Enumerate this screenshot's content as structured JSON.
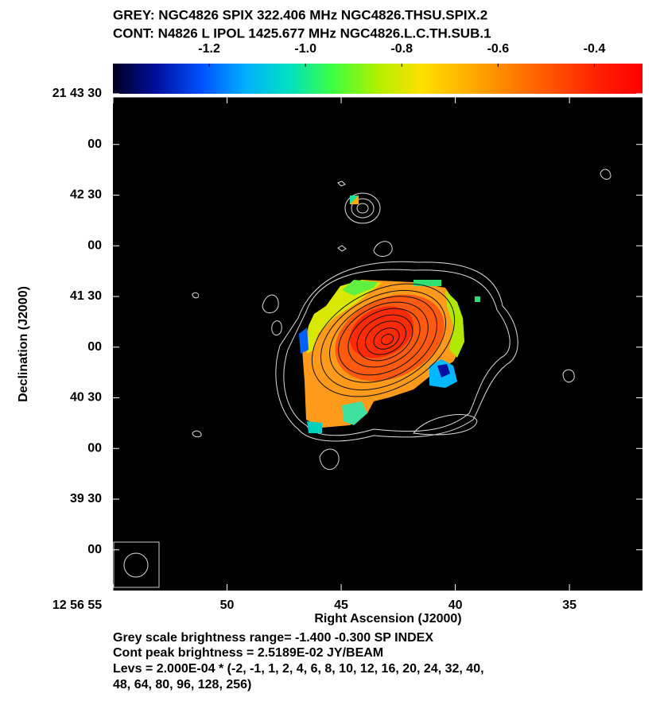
{
  "chart_data": {
    "type": "image",
    "header": [
      "GREY: NGC4826  SPIX  322.406 MHz  NGC4826.THSU.SPIX.2",
      "CONT: N4826 L  IPOL  1425.677 MHz  NGC4826.L.C.TH.SUB.1"
    ],
    "colorbar": {
      "lim": [
        -1.4,
        -0.3
      ],
      "ticks": [
        -1.2,
        {
          "value": -1,
          "label": "-1.0"
        },
        -0.8,
        -0.6,
        -0.4
      ],
      "colormap": [
        "#000020",
        "#0010a0",
        "#0050ff",
        "#00b0ff",
        "#00e0c0",
        "#40ff40",
        "#b0f000",
        "#ffe000",
        "#ffb000",
        "#ff8000",
        "#ff5000",
        "#ff2000",
        "#ff0000"
      ]
    },
    "x_label": "Right Ascension (J2000)",
    "y_label": "Declination (J2000)",
    "xlim": [
      55,
      31.8
    ],
    "xticks": [
      {
        "value": 55,
        "label": "12 56 55"
      },
      50,
      45,
      40,
      35
    ],
    "ylim": [
      21.6433,
      21.725
    ],
    "yticks": [
      {
        "value": 21.725,
        "label": "21 43 30"
      },
      {
        "value": 21.716667,
        "label": "00"
      },
      {
        "value": 21.708333,
        "label": "42 30"
      },
      {
        "value": 21.7,
        "label": "00"
      },
      {
        "value": 21.691667,
        "label": "41 30"
      },
      {
        "value": 21.683333,
        "label": "00"
      },
      {
        "value": 21.675,
        "label": "40 30"
      },
      {
        "value": 21.666667,
        "label": "00"
      },
      {
        "value": 21.658333,
        "label": "39 30"
      },
      {
        "value": 21.65,
        "label": "00"
      }
    ],
    "footer": [
      "Grey scale brightness range= -1.400 -0.300 SP INDEX",
      "Cont peak brightness = 2.5189E-02 JY/BEAM",
      "Levs = 2.000E-04 * (-2, -1, 1, 2, 4, 6, 8, 10, 12, 16, 20, 24, 32, 40,",
      "48, 64, 80, 96, 128, 256)"
    ]
  }
}
